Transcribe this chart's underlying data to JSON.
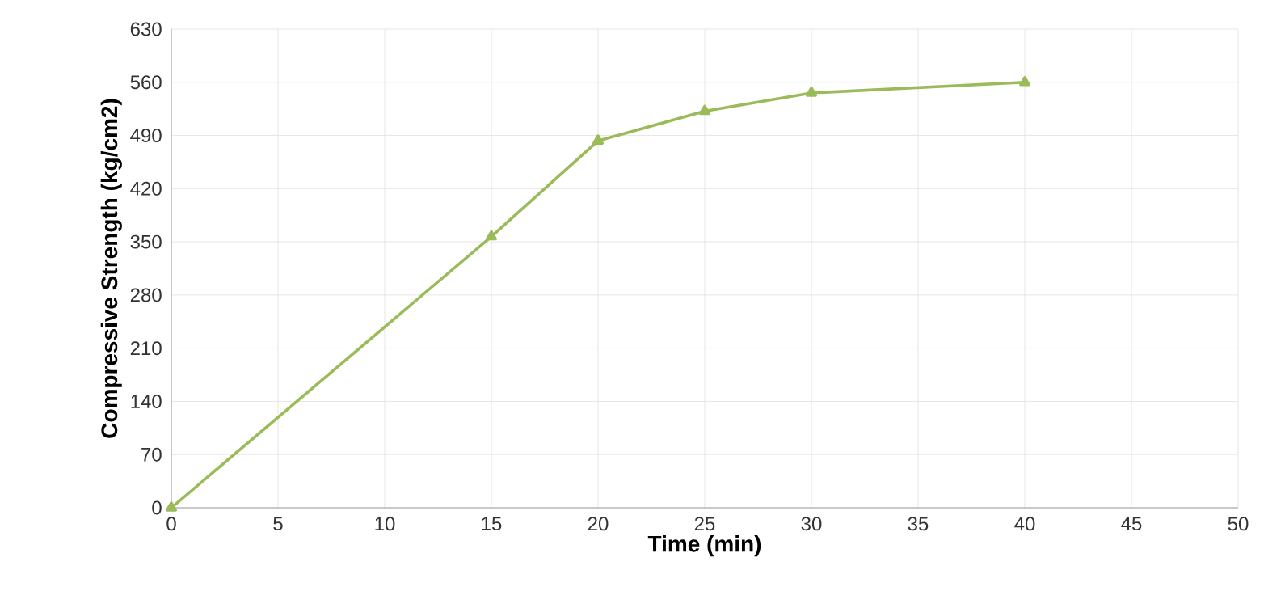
{
  "chart_data": {
    "type": "line",
    "xlabel": "Time (min)",
    "ylabel": "Compressive Strength (kg/cm2)",
    "x": [
      0,
      15,
      20,
      25,
      30,
      40
    ],
    "series": [
      {
        "color": "#9bbb59",
        "values": [
          0,
          357,
          483,
          522,
          546,
          560
        ]
      }
    ],
    "xlim": [
      0,
      50
    ],
    "xticks": [
      0,
      5,
      10,
      15,
      20,
      25,
      30,
      35,
      40,
      45,
      50
    ],
    "ylim": [
      0,
      630
    ],
    "yticks": [
      0,
      70,
      140,
      210,
      280,
      350,
      420,
      490,
      560,
      630
    ],
    "grid": true,
    "marker": "triangle",
    "line_style": "solid"
  }
}
